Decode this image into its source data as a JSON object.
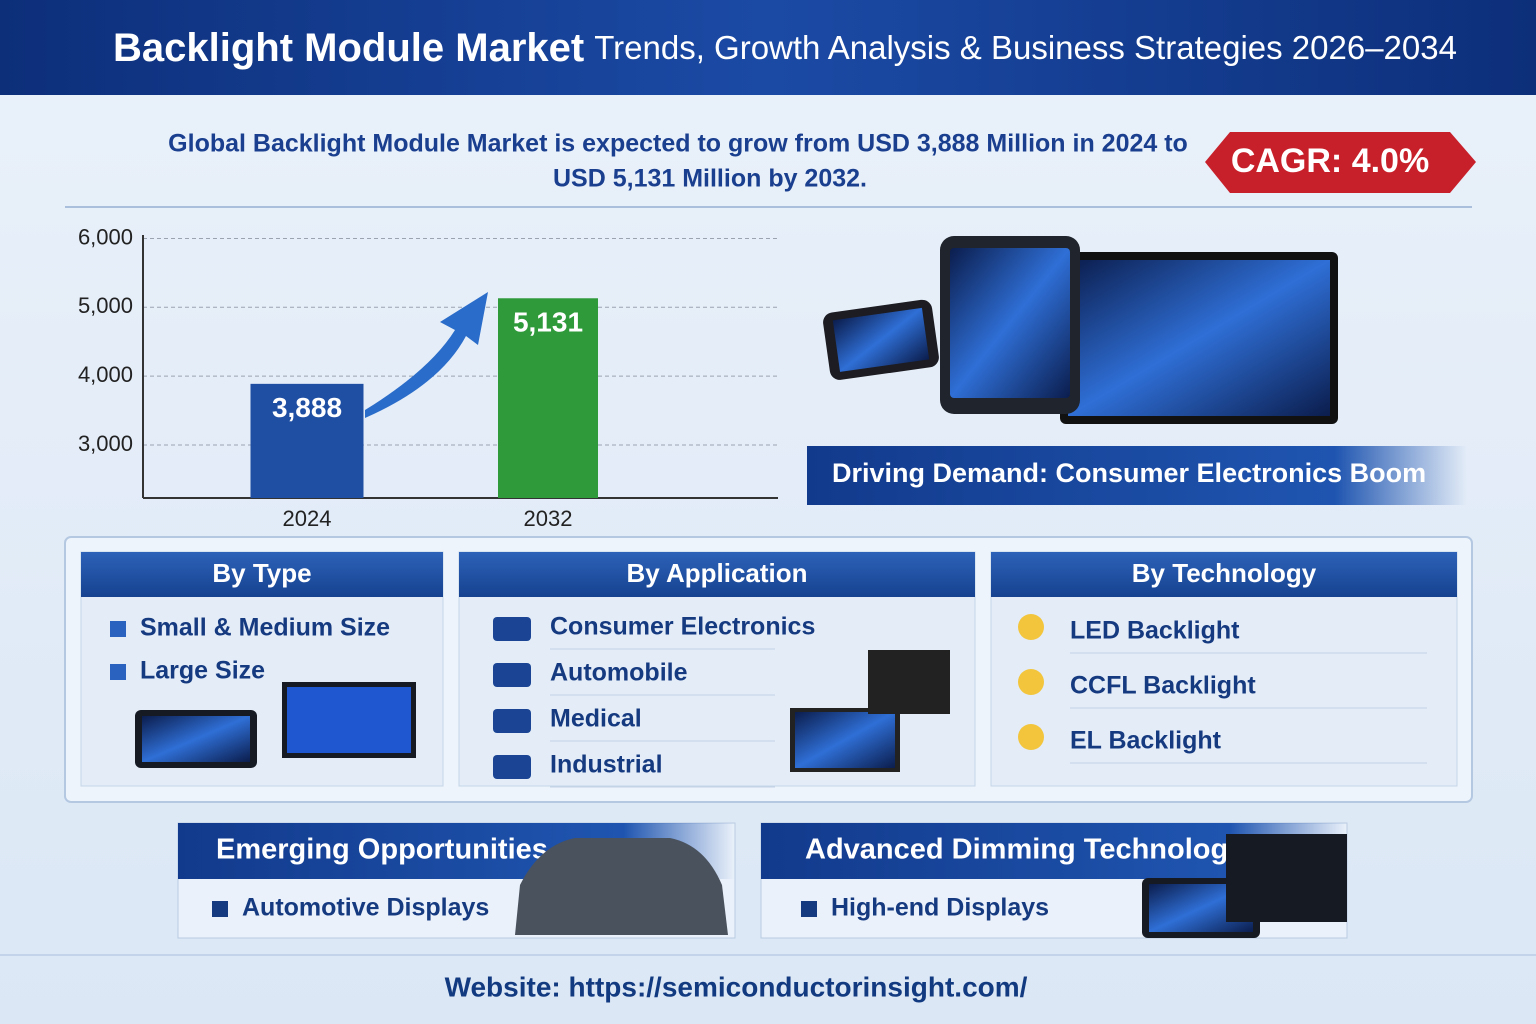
{
  "header": {
    "title_bold": "Backlight Module Market",
    "title_rest": "Trends, Growth Analysis & Business Strategies 2026–2034"
  },
  "summary": {
    "line1": "Global Backlight Module Market is expected to grow from USD 3,888 Million in 2024 to",
    "line2": "USD 5,131 Million by 2032.",
    "cagr": "CAGR: 4.0%"
  },
  "chart_data": {
    "type": "bar",
    "categories": [
      "2024",
      "2032"
    ],
    "values": [
      3888,
      5131
    ],
    "value_labels": [
      "3,888",
      "5,131"
    ],
    "colors": [
      "#1f4fa3",
      "#2e9a3a"
    ],
    "ylim": [
      2230,
      6050
    ],
    "yticks": [
      {
        "value": 3000,
        "label": "3,000"
      },
      {
        "value": 4000,
        "label": "4,000"
      },
      {
        "value": 5000,
        "label": "5,000"
      },
      {
        "value": 6000,
        "label": "6,000"
      }
    ],
    "grid": true
  },
  "highlight": "Driving Demand: Consumer Electronics Boom",
  "segments": [
    {
      "title": "By Type",
      "items": [
        "Small & Medium Size",
        "Large Size"
      ]
    },
    {
      "title": "By Application",
      "items": [
        "Consumer Electronics",
        "Automobile",
        "Medical",
        "Industrial"
      ]
    },
    {
      "title": "By Technology",
      "items": [
        "LED Backlight",
        "CCFL Backlight",
        "EL Backlight"
      ]
    }
  ],
  "opportunities": [
    {
      "title": "Emerging Opportunities",
      "items": [
        "Automotive Displays"
      ]
    },
    {
      "title": "Advanced Dimming Technology",
      "items": [
        "High-end Displays"
      ]
    }
  ],
  "footer": "Website: https://semiconductorinsight.com/"
}
